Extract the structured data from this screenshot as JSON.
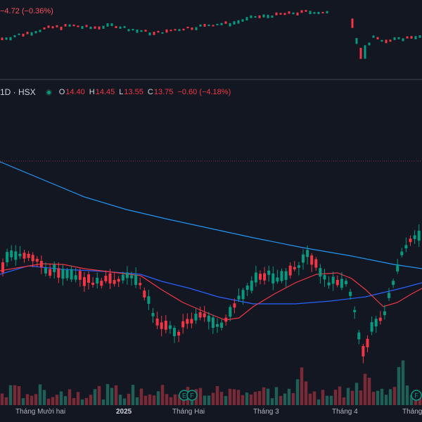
{
  "index_pane": {
    "change_text": "−4.72 (−0.36%)"
  },
  "legend": {
    "interval_exchange": "1D · HSX",
    "open_label": "O",
    "open_value": "14.40",
    "high_label": "H",
    "high_value": "14.45",
    "low_label": "L",
    "low_value": "13.55",
    "close_label": "C",
    "close_value": "13.75",
    "change_text": "−0.60 (−4.18%)",
    "status_icon": "green-dot-icon"
  },
  "colors": {
    "background": "#131722",
    "up": "#089981",
    "down": "#f23645",
    "ma_fast": "#f23645",
    "ma_medium": "#2962ff",
    "ma_slow": "#2196f3",
    "volume_up": "#1e5f56",
    "volume_down": "#7a2a35"
  },
  "earnings_markers": [
    {
      "label": "E"
    },
    {
      "label": "F"
    },
    {
      "label": "F"
    }
  ],
  "time_axis": {
    "labels": [
      "Tháng Mười hai",
      "2025",
      "Tháng Hai",
      "Tháng 3",
      "Tháng 4",
      "Tháng"
    ]
  }
}
